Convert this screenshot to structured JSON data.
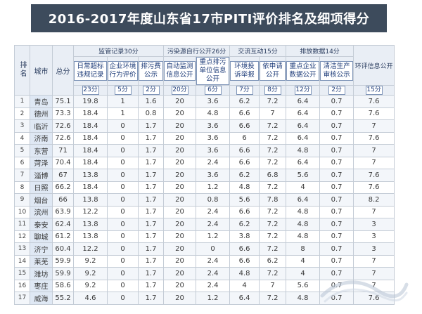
{
  "title": "2016-2017年度山东省17市PITI评价排名及细项得分",
  "header": {
    "rank": "排名",
    "city": "城市",
    "total": "总分",
    "groups": [
      {
        "label": "监管记录30分",
        "span": 3
      },
      {
        "label": "污染源自行公开26分",
        "span": 2
      },
      {
        "label": "交流互动15分",
        "span": 2
      },
      {
        "label": "排放数据14分",
        "span": 2
      },
      {
        "label": "环评信息公开",
        "span": 1
      }
    ],
    "subcolumns": [
      "日常超标违规记录",
      "企业环境行为评价",
      "排污费公示",
      "自动监测信息公开",
      "重点排污单位信息公开",
      "环境投诉举报",
      "依申请公开",
      "重点企业数据公开",
      "清洁生产审核公示",
      "环评信息公开"
    ],
    "weights": [
      "23分",
      "5分",
      "2分",
      "20分",
      "6分",
      "7分",
      "8分",
      "12分",
      "2分",
      "15分"
    ]
  },
  "rows": [
    {
      "rank": "1",
      "city": "青岛",
      "total": "75.1",
      "scores": [
        "19.8",
        "1",
        "1.6",
        "20",
        "3.6",
        "6.2",
        "7.2",
        "6.4",
        "0.7",
        "7.6"
      ]
    },
    {
      "rank": "2",
      "city": "德州",
      "total": "73.3",
      "scores": [
        "18.4",
        "1",
        "0.8",
        "20",
        "4.8",
        "6.6",
        "7",
        "6.4",
        "0.7",
        "7.6"
      ]
    },
    {
      "rank": "3",
      "city": "临沂",
      "total": "72.6",
      "scores": [
        "18.4",
        "0",
        "1.7",
        "20",
        "3.6",
        "6.6",
        "7.2",
        "6.4",
        "0.7",
        "7"
      ]
    },
    {
      "rank": "4",
      "city": "济南",
      "total": "72.6",
      "scores": [
        "18.4",
        "0",
        "1.7",
        "20",
        "3.6",
        "6",
        "7.2",
        "6.4",
        "0.7",
        "7.6"
      ]
    },
    {
      "rank": "5",
      "city": "东营",
      "total": "71",
      "scores": [
        "18.4",
        "0",
        "1.7",
        "20",
        "3.6",
        "6.6",
        "7.2",
        "4.8",
        "0.7",
        "7"
      ]
    },
    {
      "rank": "6",
      "city": "菏泽",
      "total": "70.4",
      "scores": [
        "18.4",
        "0",
        "1.7",
        "20",
        "2.4",
        "6.6",
        "7.2",
        "6.4",
        "0.7",
        "7"
      ]
    },
    {
      "rank": "7",
      "city": "淄博",
      "total": "67",
      "scores": [
        "13.8",
        "0",
        "1.7",
        "20",
        "3.6",
        "6.2",
        "6.8",
        "5.6",
        "0.7",
        "7.6"
      ]
    },
    {
      "rank": "8",
      "city": "日照",
      "total": "66.2",
      "scores": [
        "18.4",
        "0",
        "1.7",
        "20",
        "1.2",
        "4.8",
        "7.2",
        "4",
        "0.7",
        "7.6"
      ]
    },
    {
      "rank": "9",
      "city": "烟台",
      "total": "66",
      "scores": [
        "13.8",
        "0",
        "1.7",
        "20",
        "0.8",
        "5.6",
        "7.8",
        "6.4",
        "0.7",
        "8.2"
      ]
    },
    {
      "rank": "10",
      "city": "滨州",
      "total": "63.9",
      "scores": [
        "12.2",
        "0",
        "1.7",
        "20",
        "2.4",
        "6.6",
        "7.2",
        "4.8",
        "0.7",
        "7"
      ]
    },
    {
      "rank": "11",
      "city": "泰安",
      "total": "62.4",
      "scores": [
        "13.8",
        "0",
        "1.7",
        "20",
        "2.4",
        "6.2",
        "7.2",
        "4.8",
        "0.7",
        "3"
      ]
    },
    {
      "rank": "12",
      "city": "聊城",
      "total": "61.2",
      "scores": [
        "13.8",
        "0",
        "1.7",
        "20",
        "1.2",
        "3.8",
        "7.2",
        "4.8",
        "0.7",
        "3"
      ]
    },
    {
      "rank": "13",
      "city": "济宁",
      "total": "60.4",
      "scores": [
        "12.2",
        "0",
        "1.7",
        "20",
        "0",
        "6.6",
        "7.2",
        "8",
        "0.7",
        "3"
      ]
    },
    {
      "rank": "14",
      "city": "莱芜",
      "total": "59.9",
      "scores": [
        "9.2",
        "0",
        "1.7",
        "20",
        "2.4",
        "6.6",
        "6.2",
        "4",
        "0.7",
        "7"
      ]
    },
    {
      "rank": "15",
      "city": "潍坊",
      "total": "59.9",
      "scores": [
        "9.2",
        "0",
        "1.7",
        "20",
        "2.4",
        "4.8",
        "7.2",
        "4",
        "0.7",
        "7"
      ]
    },
    {
      "rank": "16",
      "city": "枣庄",
      "total": "58.6",
      "scores": [
        "9.2",
        "0",
        "1.7",
        "20",
        "2.4",
        "4",
        "7",
        "5.6",
        "0.7",
        "7"
      ]
    },
    {
      "rank": "17",
      "city": "威海",
      "total": "55.2",
      "scores": [
        "4.6",
        "0",
        "1.7",
        "20",
        "1.2",
        "6.4",
        "7.2",
        "4.8",
        "0.7",
        "7.6"
      ]
    }
  ],
  "colors": {
    "banner": "#3d4b5c",
    "header_bg": "#e9eef5",
    "border": "#c4ccd6",
    "accent": "#1f3d7a"
  },
  "watermark": {
    "icon": "wave-logo-icon"
  }
}
